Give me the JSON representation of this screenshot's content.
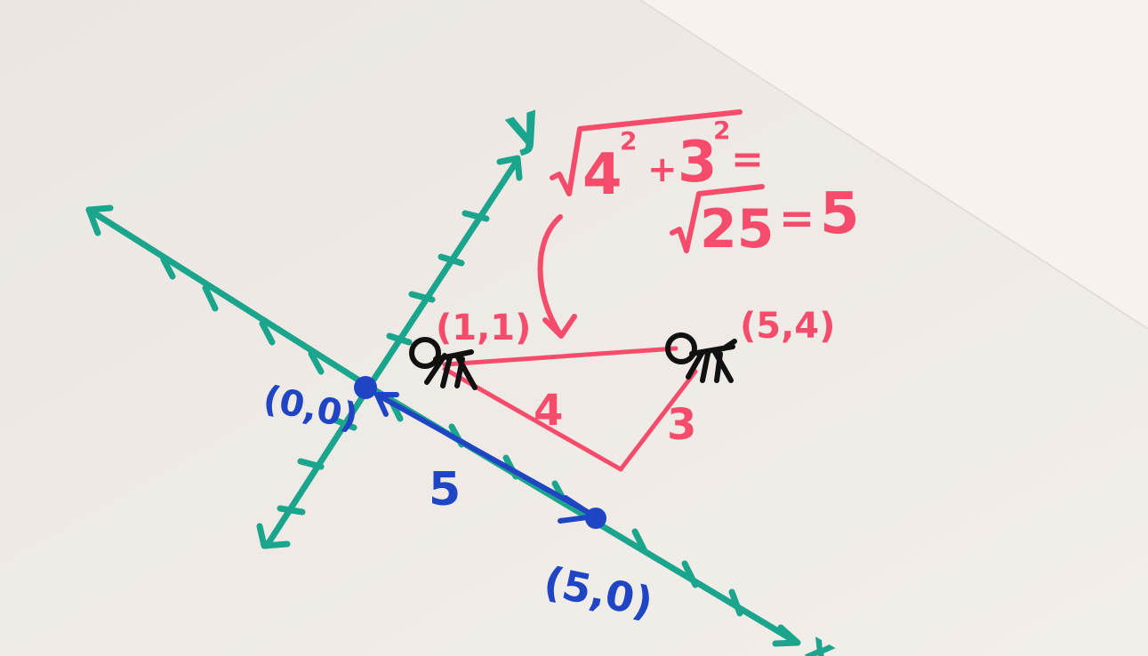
{
  "colors": {
    "paper": "#efebe8",
    "paper_light": "#f6f1ed",
    "axes": "#1ba58d",
    "pink": "#f54c6c",
    "blue": "#1f45c4",
    "ink": "#111111"
  },
  "labels": {
    "y_axis": "y",
    "x_axis": "x",
    "formula_line1_a": "4",
    "formula_exp_a": "2",
    "formula_plus": "+",
    "formula_line1_b": "3",
    "formula_exp_b": "2",
    "formula_eq1": "=",
    "formula_line2_radicand": "25",
    "formula_eq2": "=",
    "formula_result": "5",
    "point_a": "(1,1)",
    "point_b": "(5,4)",
    "origin": "(0,0)",
    "point_c": "(5,0)",
    "side_4": "4",
    "side_3": "3",
    "distance_5": "5"
  },
  "icons": {
    "walker_a": "stick-figure-icon",
    "walker_b": "stick-figure-icon"
  }
}
